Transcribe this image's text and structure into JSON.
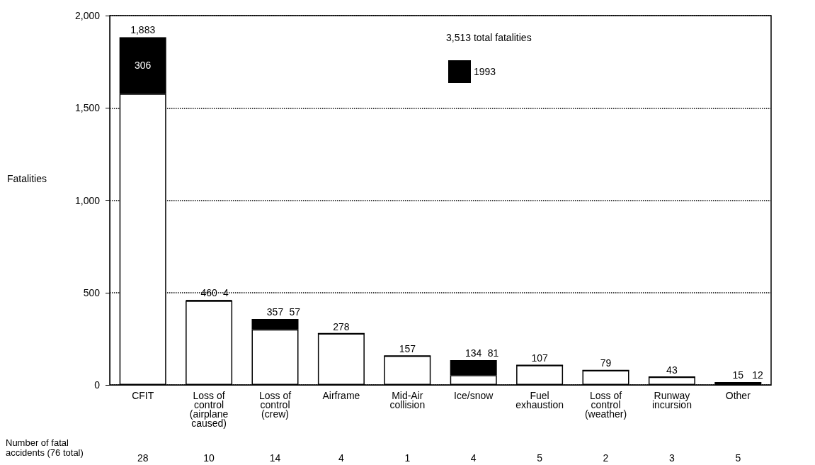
{
  "chart_data": {
    "type": "bar",
    "stacked": true,
    "ylabel": "Fatalities",
    "categories": [
      "CFIT",
      "Loss of\ncontrol\n(airplane\ncaused)",
      "Loss of\ncontrol\n(crew)",
      "Airframe",
      "Mid-Air\ncollision",
      "Ice/snow",
      "Fuel\nexhaustion",
      "Loss of\ncontrol\n(weather)",
      "Runway\nincursion",
      "Other"
    ],
    "series": [
      {
        "color": "#ffffff",
        "values": [
          1577,
          456,
          300,
          278,
          157,
          53,
          107,
          79,
          43,
          3
        ]
      },
      {
        "name": "1993",
        "color": "#000000",
        "values": [
          306,
          4,
          57,
          0,
          0,
          81,
          0,
          0,
          0,
          12
        ],
        "value_labels": [
          "306",
          "4",
          "57",
          null,
          null,
          "81",
          null,
          null,
          null,
          "12"
        ]
      }
    ],
    "totals": [
      "1,883",
      "460",
      "357",
      "278",
      "157",
      "134",
      "107",
      "79",
      "43",
      "15"
    ],
    "ylim": [
      0,
      2000
    ],
    "yticks": [
      0,
      {
        "value": 500,
        "label": "500"
      },
      {
        "value": 1000,
        "label": "1,000"
      },
      {
        "value": 1500,
        "label": "1,500"
      },
      {
        "value": 2000,
        "label": "2,000"
      }
    ],
    "grid": "y",
    "legend": "top",
    "annotations": [
      "3,513 total fatalities",
      "Number of fatal\naccidents (76 total)",
      "28",
      "10",
      "14",
      "4",
      "1",
      "4",
      "5",
      "2",
      "3",
      "5"
    ]
  }
}
